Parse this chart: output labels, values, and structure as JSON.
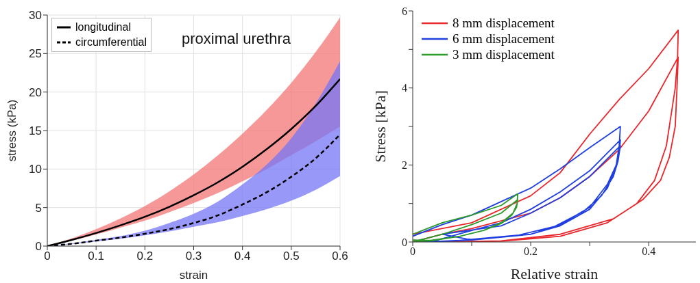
{
  "chart_data": [
    {
      "type": "line",
      "xlabel": "strain",
      "ylabel": "stress (kPa)",
      "xlim": [
        0,
        0.6
      ],
      "ylim": [
        0,
        30
      ],
      "xticks": [
        0,
        0.1,
        0.2,
        0.3,
        0.4,
        0.5,
        0.6
      ],
      "yticks": [
        0,
        5,
        10,
        15,
        20,
        25,
        30
      ],
      "grid": true,
      "legend": "top left",
      "annotations": [
        "proximal urethra"
      ],
      "colors": [
        "#f47575",
        "#7575f5"
      ],
      "x": [
        0,
        0.05,
        0.1,
        0.15,
        0.2,
        0.25,
        0.3,
        0.35,
        0.4,
        0.45,
        0.5,
        0.55,
        0.6
      ],
      "series": [
        {
          "name": "longitudinal",
          "color": "#000000",
          "line_style": "solid",
          "values": [
            0,
            0.8,
            1.7,
            2.7,
            3.8,
            5.1,
            6.6,
            8.3,
            10.3,
            12.6,
            15.2,
            18.2,
            21.7
          ],
          "lower": [
            0,
            0.7,
            1.5,
            2.4,
            3.3,
            4.4,
            5.6,
            6.9,
            8.4,
            10.0,
            11.8,
            13.6,
            15.5
          ],
          "upper": [
            0,
            1.0,
            2.2,
            3.6,
            5.2,
            7.1,
            9.3,
            11.8,
            14.6,
            17.7,
            21.2,
            25.2,
            29.7
          ]
        },
        {
          "name": "circumferential",
          "color": "#000000",
          "line_style": "dashed",
          "values": [
            0,
            0.3,
            0.7,
            1.1,
            1.6,
            2.2,
            3.0,
            4.0,
            5.4,
            7.0,
            9.0,
            11.4,
            14.5
          ],
          "lower": [
            0,
            0.25,
            0.6,
            0.95,
            1.4,
            1.9,
            2.5,
            3.1,
            3.9,
            4.8,
            5.9,
            7.3,
            9.1
          ],
          "upper": [
            0,
            0.35,
            0.8,
            1.3,
            2.0,
            3.0,
            4.2,
            5.8,
            8.0,
            10.6,
            14.0,
            18.5,
            24.0
          ]
        }
      ]
    },
    {
      "type": "line",
      "xlabel": "Relative strain",
      "ylabel": "Stress [kPa]",
      "xlim": [
        0,
        0.48
      ],
      "ylim": [
        0,
        6
      ],
      "xticks": [
        0,
        {
          "value": 0.1,
          "label": null
        },
        0.2,
        {
          "value": 0.3,
          "label": null
        },
        0.4
      ],
      "yticks": [
        0,
        {
          "value": 1,
          "label": null
        },
        2,
        {
          "value": 3,
          "label": null
        },
        4,
        {
          "value": 5,
          "label": null
        },
        6
      ],
      "legend": "top left",
      "series": [
        {
          "name": "8 mm displacement",
          "color": "#e8262b",
          "x": [
            0,
            0.1,
            0.2,
            0.25,
            0.3,
            0.35,
            0.4,
            0.45,
            0.449,
            0.445,
            0.44,
            0.43,
            0.41,
            0.38,
            0.33,
            0.25,
            0.15,
            0.05,
            0,
            0.05,
            0.1,
            0.2,
            0.25,
            0.3,
            0.35,
            0.4,
            0.45,
            0.448,
            0.445,
            0.435,
            0.42,
            0.39,
            0.34,
            0.25,
            0.15,
            0.05
          ],
          "values": [
            0.2,
            0.5,
            1.2,
            1.8,
            2.8,
            3.7,
            4.5,
            5.5,
            4.8,
            4.0,
            3.5,
            2.5,
            1.6,
            1.0,
            0.5,
            0.15,
            0.02,
            0,
            0,
            0.2,
            0.35,
            0.75,
            1.15,
            1.7,
            2.4,
            3.4,
            4.8,
            4.0,
            3.0,
            2.2,
            1.6,
            1.1,
            0.6,
            0.2,
            0.03,
            0
          ]
        },
        {
          "name": "6 mm displacement",
          "color": "#1f3fe0",
          "x": [
            0,
            0.05,
            0.1,
            0.15,
            0.2,
            0.25,
            0.3,
            0.352,
            0.35,
            0.345,
            0.33,
            0.3,
            0.25,
            0.2,
            0.1,
            0.03,
            0.1,
            0.15,
            0.2,
            0.25,
            0.3,
            0.352,
            0.35,
            0.343,
            0.33,
            0.3,
            0.25,
            0.2,
            0.1,
            0.05,
            0.15,
            0.2,
            0.25,
            0.3,
            0.352,
            0.348,
            0.34,
            0.32,
            0.29,
            0.24,
            0.18,
            0.08,
            0.02
          ],
          "values": [
            0.15,
            0.45,
            0.7,
            1.05,
            1.4,
            1.9,
            2.45,
            3.0,
            2.5,
            2.0,
            1.5,
            0.9,
            0.45,
            0.2,
            0.05,
            0,
            0.3,
            0.5,
            0.85,
            1.3,
            1.85,
            2.65,
            2.3,
            1.9,
            1.4,
            0.85,
            0.42,
            0.2,
            0.05,
            0.2,
            0.42,
            0.75,
            1.15,
            1.7,
            2.5,
            2.1,
            1.7,
            1.2,
            0.8,
            0.4,
            0.18,
            0.04,
            0
          ]
        },
        {
          "name": "3 mm displacement",
          "color": "#2a9a2a",
          "x": [
            0,
            0.05,
            0.1,
            0.15,
            0.178,
            0.177,
            0.17,
            0.15,
            0.12,
            0.08,
            0.03,
            0,
            0.05,
            0.1,
            0.15,
            0.178,
            0.176,
            0.168,
            0.15,
            0.12,
            0.08,
            0.03,
            0
          ],
          "values": [
            0.2,
            0.5,
            0.7,
            0.95,
            1.25,
            1.0,
            0.75,
            0.5,
            0.3,
            0.15,
            0.03,
            0,
            0.2,
            0.45,
            0.75,
            1.1,
            0.9,
            0.7,
            0.48,
            0.3,
            0.15,
            0.04,
            0.05
          ]
        }
      ]
    }
  ]
}
